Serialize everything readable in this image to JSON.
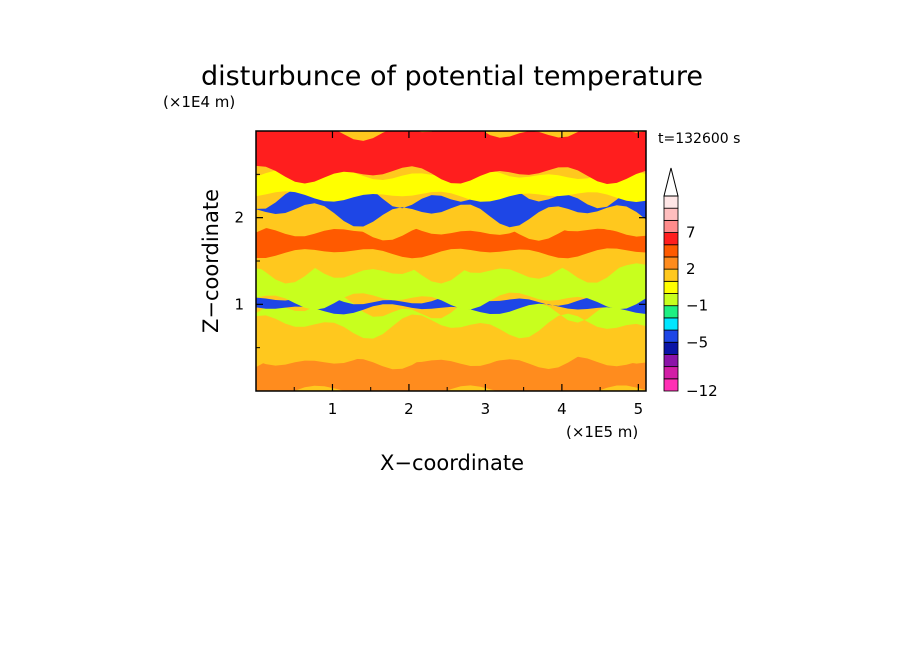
{
  "chart_data": {
    "type": "heatmap",
    "title": "disturbunce of potential temperature",
    "xlabel": "X−coordinate",
    "ylabel": "Z−coordinate",
    "x_scale_label": "(×1E5 m)",
    "y_scale_label": "(×1E4 m)",
    "time_label": "t=132600 s",
    "xlim": [
      0,
      5.1
    ],
    "ylim": [
      0,
      3.0
    ],
    "x_ticks": [
      1,
      2,
      3,
      4,
      5
    ],
    "y_ticks": [
      1,
      2
    ],
    "colorbar": {
      "extend": "max",
      "colors": [
        "#ff2fb4",
        "#d21ea6",
        "#8c14a8",
        "#0a14a6",
        "#1e46e6",
        "#00e6ff",
        "#1ef082",
        "#c8ff1e",
        "#ffff00",
        "#ffc81e",
        "#ff8c1e",
        "#ff5a00",
        "#ff1e1e",
        "#ff8c8c",
        "#ffbebe",
        "#ffe6e6"
      ],
      "labels": [
        {
          "text": "7",
          "index": 13
        },
        {
          "text": "2",
          "index": 10
        },
        {
          "text": "−1",
          "index": 7
        },
        {
          "text": "−5",
          "index": 4
        },
        {
          "text": "−12",
          "index": 0
        }
      ]
    },
    "field_bands": [
      {
        "z": [
          0.0,
          0.35
        ],
        "value": 2
      },
      {
        "z": [
          0.35,
          0.75
        ],
        "value": 1
      },
      {
        "z": [
          0.75,
          0.95
        ],
        "value": -1
      },
      {
        "z": [
          0.95,
          1.05
        ],
        "value": -4
      },
      {
        "z": [
          1.05,
          1.4
        ],
        "value": -1
      },
      {
        "z": [
          1.4,
          1.6
        ],
        "value": 1
      },
      {
        "z": [
          1.6,
          1.85
        ],
        "value": 3
      },
      {
        "z": [
          1.85,
          2.05
        ],
        "value": 1
      },
      {
        "z": [
          2.05,
          2.25
        ],
        "value": -4
      },
      {
        "z": [
          2.25,
          2.5
        ],
        "value": 0
      },
      {
        "z": [
          2.5,
          3.0
        ],
        "value": 4
      }
    ]
  }
}
